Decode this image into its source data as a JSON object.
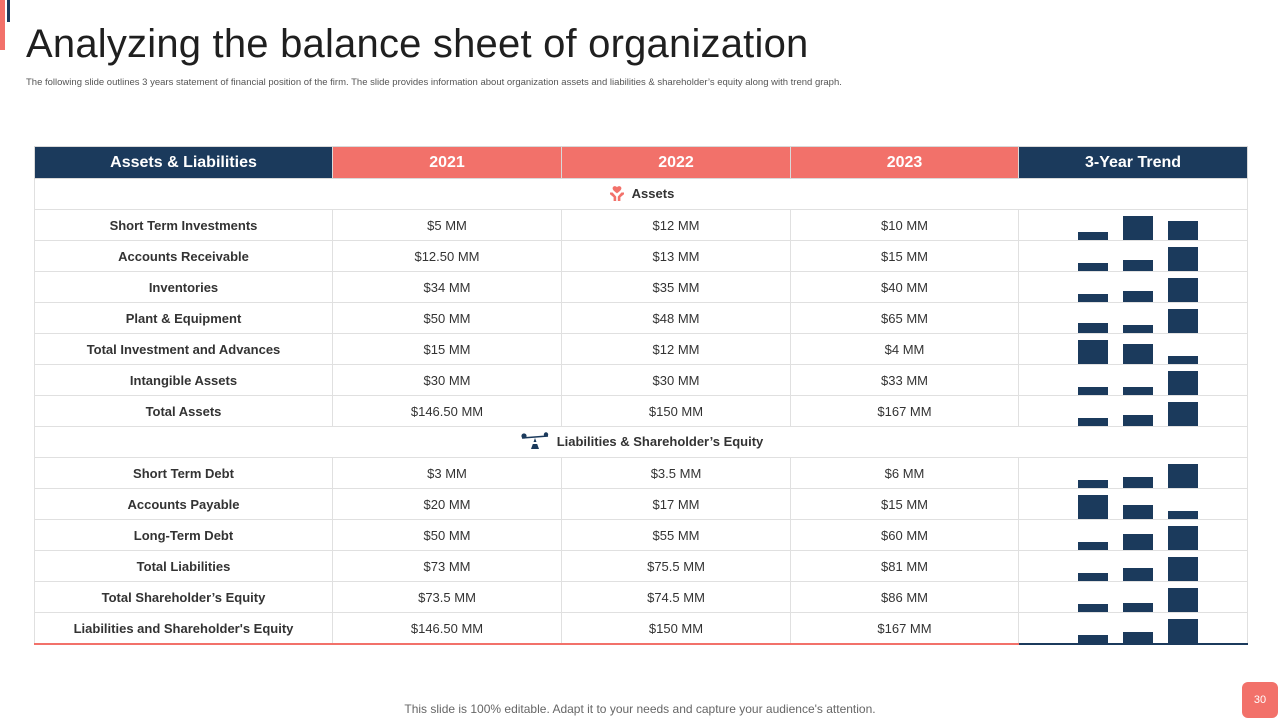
{
  "slide": {
    "title": "Analyzing the balance sheet of organization",
    "subtitle": "The following slide outlines 3 years statement of financial position of the firm. The slide provides information about organization assets and liabilities & shareholder’s equity along  with trend graph.",
    "footer": "This slide is 100% editable. Adapt it to your needs and capture your audience's attention.",
    "page_number": "30"
  },
  "colors": {
    "navy": "#1b3a5c",
    "coral": "#f2716a"
  },
  "table": {
    "headers": [
      "Assets  & Liabilities",
      "2021",
      "2022",
      "2023",
      "3-Year Trend"
    ],
    "assets_section": {
      "label": "Assets",
      "icon": "hand-heart-icon"
    },
    "assets_rows": [
      {
        "label": "Short Term Investments",
        "values": [
          "$5 MM",
          "$12 MM",
          "$10 MM"
        ],
        "trend": [
          5,
          12,
          10
        ]
      },
      {
        "label": "Accounts Receivable",
        "values": [
          "$12.50 MM",
          "$13 MM",
          "$15 MM"
        ],
        "trend": [
          12.5,
          13,
          15
        ]
      },
      {
        "label": "Inventories",
        "values": [
          "$34  MM",
          "$35  MM",
          "$40  MM"
        ],
        "trend": [
          34,
          35,
          40
        ]
      },
      {
        "label": "Plant & Equipment",
        "values": [
          "$50  MM",
          "$48  MM",
          "$65  MM"
        ],
        "trend": [
          50,
          48,
          65
        ]
      },
      {
        "label": "Total Investment and Advances",
        "values": [
          "$15  MM",
          "$12  MM",
          "$4  MM"
        ],
        "trend": [
          15,
          12,
          4
        ]
      },
      {
        "label": "Intangible Assets",
        "values": [
          "$30  MM",
          "$30  MM",
          "$33  MM"
        ],
        "trend": [
          30,
          30,
          33
        ]
      },
      {
        "label": "Total Assets",
        "values": [
          "$146.50 MM",
          "$150 MM",
          "$167 MM"
        ],
        "trend": [
          146.5,
          150,
          167
        ]
      }
    ],
    "liabilities_section": {
      "label": "Liabilities & Shareholder’s Equity",
      "icon": "balance-scale-icon"
    },
    "liabilities_rows": [
      {
        "label": "Short Term Debt",
        "values": [
          "$3 MM",
          "$3.5 MM",
          "$6 MM"
        ],
        "trend": [
          3,
          3.5,
          6
        ]
      },
      {
        "label": "Accounts Payable",
        "values": [
          "$20  MM",
          "$17  MM",
          "$15  MM"
        ],
        "trend": [
          20,
          17,
          15
        ]
      },
      {
        "label": "Long-Term Debt",
        "values": [
          "$50  MM",
          "$55  MM",
          "$60  MM"
        ],
        "trend": [
          50,
          55,
          60
        ]
      },
      {
        "label": "Total Liabilities",
        "values": [
          "$73  MM",
          "$75.5  MM",
          "$81  MM"
        ],
        "trend": [
          73,
          75.5,
          81
        ]
      },
      {
        "label": "Total Shareholder’s Equity",
        "values": [
          "$73.5  MM",
          "$74.5  MM",
          "$86  MM"
        ],
        "trend": [
          73.5,
          74.5,
          86
        ]
      },
      {
        "label": "Liabilities and Shareholder's Equity",
        "values": [
          "$146.50 MM",
          "$150 MM",
          "$167 MM"
        ],
        "trend": [
          146.5,
          150,
          167
        ]
      }
    ]
  }
}
